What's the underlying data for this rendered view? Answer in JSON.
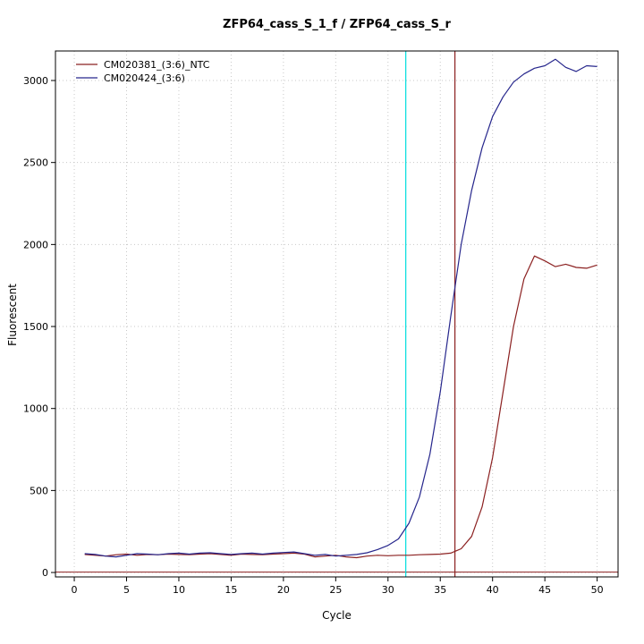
{
  "chart": {
    "title": "ZFP64_cass_S_1_f / ZFP64_cass_S_r",
    "xlabel": "Cycle",
    "ylabel": "Fluorescent"
  },
  "chart_data": {
    "type": "line",
    "title": "ZFP64_cass_S_1_f / ZFP64_cass_S_r",
    "xlabel": "Cycle",
    "ylabel": "Fluorescent",
    "xlim": [
      -1.8,
      52
    ],
    "ylim": [
      -27,
      3180
    ],
    "xticks": [
      0,
      5,
      10,
      15,
      20,
      25,
      30,
      35,
      40,
      45,
      50
    ],
    "yticks": [
      0,
      500,
      1000,
      1500,
      2000,
      2500,
      3000
    ],
    "grid": true,
    "grid_color": "#c8c8c8",
    "legend_position": "top-left",
    "x": [
      1,
      2,
      3,
      4,
      5,
      6,
      7,
      8,
      9,
      10,
      11,
      12,
      13,
      14,
      15,
      16,
      17,
      18,
      19,
      20,
      21,
      22,
      23,
      24,
      25,
      26,
      27,
      28,
      29,
      30,
      31,
      32,
      33,
      34,
      35,
      36,
      37,
      38,
      39,
      40,
      41,
      42,
      43,
      44,
      45,
      46,
      47,
      48,
      49,
      50
    ],
    "series": [
      {
        "name": "CM020381_(3:6)_NTC",
        "color": "#8b2020",
        "values": [
          110,
          105,
          100,
          108,
          112,
          105,
          110,
          108,
          112,
          110,
          108,
          112,
          115,
          110,
          105,
          112,
          110,
          108,
          112,
          115,
          118,
          112,
          95,
          100,
          105,
          95,
          90,
          100,
          105,
          102,
          105,
          105,
          108,
          110,
          112,
          118,
          145,
          220,
          400,
          700,
          1100,
          1500,
          1790,
          1930,
          1900,
          1865,
          1880,
          1860,
          1855,
          1875
        ]
      },
      {
        "name": "CM020424_(3:6)",
        "color": "#26268c",
        "values": [
          115,
          110,
          100,
          95,
          105,
          115,
          112,
          108,
          115,
          118,
          112,
          118,
          120,
          115,
          110,
          115,
          118,
          112,
          118,
          122,
          125,
          115,
          105,
          110,
          100,
          105,
          110,
          120,
          140,
          165,
          205,
          300,
          460,
          720,
          1100,
          1560,
          2000,
          2330,
          2590,
          2780,
          2900,
          2990,
          3040,
          3075,
          3090,
          3130,
          3080,
          3055,
          3090,
          3085
        ]
      }
    ],
    "vlines": [
      {
        "x": 31.7,
        "color": "#00dddd"
      },
      {
        "x": 36.4,
        "color": "#8b2020"
      }
    ],
    "hlines": [
      {
        "y": 2,
        "color": "#8b2020"
      }
    ]
  }
}
